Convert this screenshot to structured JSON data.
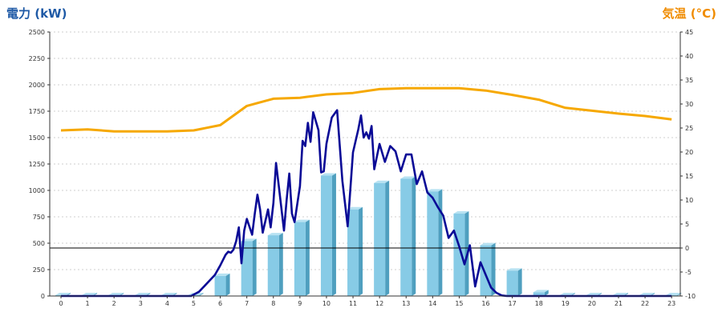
{
  "chart_data": {
    "type": "bar",
    "left_axis_title": "電力 (kW)",
    "right_axis_title": "気温 (°C)",
    "colors": {
      "left_title": "#1f5aa6",
      "right_title": "#f08c00",
      "bar_front": "#87cbe6",
      "bar_side": "#4f9fbf",
      "bar_top": "#b7e2f2",
      "power_line": "#0a0a96",
      "temp_line": "#f6a800",
      "zero_line": "#000000"
    },
    "hours": [
      "0",
      "1",
      "2",
      "3",
      "4",
      "5",
      "6",
      "7",
      "8",
      "9",
      "10",
      "11",
      "12",
      "13",
      "14",
      "15",
      "16",
      "17",
      "18",
      "19",
      "20",
      "21",
      "22",
      "23"
    ],
    "left_ticks": [
      "0",
      "250",
      "500",
      "750",
      "1000",
      "1250",
      "1500",
      "1750",
      "2000",
      "2250",
      "2500"
    ],
    "right_ticks": [
      "-10",
      "-5",
      "0",
      "5",
      "10",
      "15",
      "20",
      "25",
      "30",
      "35",
      "40",
      "45"
    ],
    "left_range": [
      0,
      2500
    ],
    "right_range": [
      -10,
      45
    ],
    "grid": true,
    "series": [
      {
        "kind": "bar",
        "axis": "left",
        "values": [
          8,
          8,
          8,
          8,
          8,
          8,
          190,
          520,
          575,
          700,
          1140,
          820,
          1070,
          1110,
          990,
          780,
          480,
          240,
          35,
          8,
          8,
          8,
          8,
          8
        ]
      },
      {
        "kind": "line",
        "axis": "left",
        "x": [
          0,
          1,
          2,
          3,
          4,
          4.9,
          5.2,
          5.5,
          5.8,
          6.0,
          6.2,
          6.3,
          6.4,
          6.5,
          6.6,
          6.7,
          6.8,
          6.9,
          7.0,
          7.2,
          7.3,
          7.4,
          7.5,
          7.6,
          7.8,
          7.9,
          8.0,
          8.1,
          8.2,
          8.4,
          8.5,
          8.6,
          8.7,
          8.8,
          9.0,
          9.1,
          9.2,
          9.3,
          9.4,
          9.5,
          9.7,
          9.8,
          9.9,
          10.0,
          10.2,
          10.4,
          10.6,
          10.8,
          11.0,
          11.2,
          11.3,
          11.4,
          11.5,
          11.6,
          11.7,
          11.8,
          12.0,
          12.2,
          12.4,
          12.6,
          12.8,
          13.0,
          13.2,
          13.4,
          13.6,
          13.8,
          14.0,
          14.2,
          14.4,
          14.6,
          14.8,
          15.0,
          15.2,
          15.4,
          15.6,
          15.8,
          16.0,
          16.2,
          16.4,
          16.6,
          16.8,
          17.0,
          17.2,
          17.4,
          17.6,
          17.8,
          18.0,
          18.3,
          19,
          20,
          21,
          22,
          23
        ],
        "values": [
          0,
          0,
          0,
          0,
          0,
          0,
          40,
          120,
          200,
          290,
          390,
          420,
          410,
          440,
          520,
          650,
          310,
          620,
          730,
          580,
          780,
          960,
          820,
          600,
          820,
          650,
          880,
          1260,
          1050,
          620,
          910,
          1160,
          780,
          700,
          1040,
          1470,
          1420,
          1640,
          1460,
          1740,
          1570,
          1170,
          1180,
          1440,
          1690,
          1760,
          1090,
          660,
          1360,
          1580,
          1710,
          1500,
          1550,
          1490,
          1610,
          1200,
          1440,
          1270,
          1420,
          1370,
          1180,
          1340,
          1340,
          1060,
          1180,
          980,
          930,
          840,
          760,
          550,
          620,
          470,
          300,
          480,
          90,
          320,
          200,
          80,
          30,
          5,
          0,
          0,
          0,
          0,
          0,
          0,
          0,
          0,
          0,
          0,
          0,
          0,
          0
        ]
      },
      {
        "kind": "line",
        "axis": "right",
        "x": [
          0,
          1,
          2,
          3,
          4,
          5,
          6,
          7,
          8,
          9,
          10,
          11,
          12,
          13,
          14,
          15,
          16,
          17,
          18,
          19,
          20,
          21,
          22,
          23
        ],
        "values": [
          24.5,
          24.7,
          24.3,
          24.3,
          24.3,
          24.5,
          25.6,
          29.6,
          31.1,
          31.3,
          32.0,
          32.3,
          33.1,
          33.3,
          33.3,
          33.3,
          32.8,
          31.9,
          30.9,
          29.2,
          28.6,
          28.0,
          27.5,
          26.8
        ]
      }
    ]
  }
}
